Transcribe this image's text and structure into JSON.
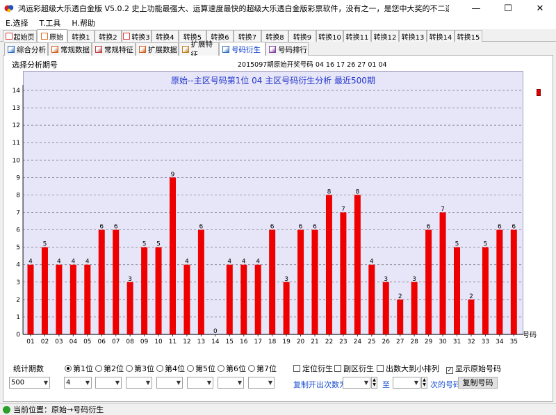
{
  "window": {
    "title": "鸿运彩超级大乐透白金版 V5.0.2  史上功能最强大、运算速度最快的超级大乐透白金版彩票软件，没有之一，是您中大奖的不二选择！祝您好运！",
    "minimize": "—",
    "maximize": "☐",
    "close": "✕"
  },
  "menu": [
    "E.选择",
    "T.工具",
    "H.帮助"
  ],
  "tabs_top": [
    "起始页",
    "原始",
    "转换1",
    "转换2",
    "转换3",
    "转换4",
    "转换5",
    "转换6",
    "转换7",
    "转换8",
    "转换9",
    "转换10",
    "转换11",
    "转换12",
    "转换13",
    "转换14",
    "转换15"
  ],
  "tabs_top_active": 1,
  "tabs_sub": [
    "综合分析",
    "常规数据",
    "常规特征",
    "扩展数据",
    "扩展特征",
    "号码衍生",
    "号码排行"
  ],
  "tabs_sub_active": 5,
  "header": {
    "period_label": "选择分析期号",
    "period_info": "2015097期原始开奖号码  04 16 17 26 27 01 04"
  },
  "chart_data": {
    "type": "bar",
    "title": "原始--主区号码第1位  04 主区号码衍生分析  最近500期",
    "xlabel": "号码",
    "ylabel": "",
    "ylim": [
      0,
      14
    ],
    "yticks": [
      0,
      1,
      2,
      3,
      4,
      5,
      6,
      7,
      8,
      9,
      10,
      11,
      12,
      13,
      14
    ],
    "grid": true,
    "colors": {
      "bar": "#ee0000",
      "background": "#e6e6f8",
      "title": "#2233cc"
    },
    "categories": [
      "01",
      "02",
      "03",
      "04",
      "05",
      "06",
      "07",
      "08",
      "09",
      "10",
      "11",
      "12",
      "13",
      "14",
      "15",
      "16",
      "17",
      "18",
      "19",
      "20",
      "21",
      "22",
      "23",
      "24",
      "25",
      "26",
      "27",
      "28",
      "29",
      "30",
      "31",
      "32",
      "33",
      "34",
      "35"
    ],
    "values": [
      4,
      5,
      4,
      4,
      4,
      6,
      6,
      3,
      5,
      5,
      9,
      4,
      6,
      0,
      4,
      4,
      4,
      6,
      3,
      6,
      6,
      8,
      7,
      8,
      4,
      3,
      2,
      3,
      6,
      7,
      5,
      2,
      5,
      6,
      6
    ]
  },
  "controls": {
    "stat_periods_label": "统计期数",
    "stat_periods_value": "500",
    "positions": [
      "第1位",
      "第2位",
      "第3位",
      "第4位",
      "第5位",
      "第6位",
      "第7位"
    ],
    "position_selected": 0,
    "position_value": "4",
    "checks": [
      {
        "label": "定位衍生",
        "checked": false
      },
      {
        "label": "副区衍生",
        "checked": false
      },
      {
        "label": "出数大到小排列",
        "checked": false
      },
      {
        "label": "显示原始号码",
        "checked": true
      }
    ],
    "copy_label": "复制开出次数为",
    "to_label": "至",
    "times_label": "次的号码",
    "copy_button": "复制号码"
  },
  "status": {
    "text": "当前位置：原始→号码衍生"
  }
}
